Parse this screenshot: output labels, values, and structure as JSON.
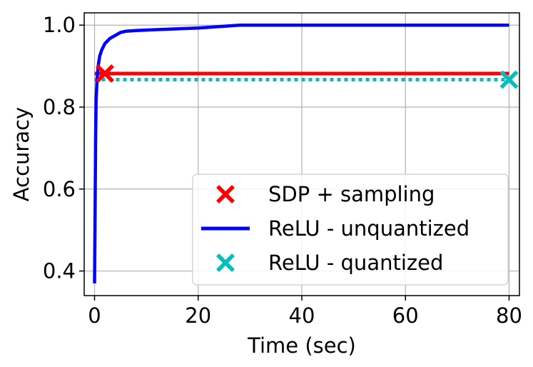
{
  "chart_data": {
    "type": "line",
    "xlabel": "Time (sec)",
    "ylabel": "Accuracy",
    "xlim": [
      -2,
      82
    ],
    "ylim": [
      0.34,
      1.03
    ],
    "x_ticks": [
      0,
      20,
      40,
      60,
      80
    ],
    "y_ticks": [
      0.4,
      0.6,
      0.8,
      1.0
    ],
    "x_tick_labels": [
      "0",
      "20",
      "40",
      "60",
      "80"
    ],
    "y_tick_labels": [
      "0.4",
      "0.6",
      "0.8",
      "1.0"
    ],
    "grid": true,
    "legend_position": "lower-right",
    "series": [
      {
        "name": "SDP + sampling",
        "style": "horizontal-line-with-x-marker",
        "color": "#ff0000",
        "x": [
          0,
          80
        ],
        "y": [
          0.882,
          0.882
        ],
        "marker_x": 2,
        "marker_y": 0.882
      },
      {
        "name": "ReLU - unquantized",
        "style": "solid-line",
        "color": "#0000ff",
        "x": [
          0,
          0.1,
          0.2,
          0.3,
          0.5,
          0.7,
          1.0,
          1.4,
          2.0,
          3.0,
          4.0,
          5.0,
          6.0,
          8.0,
          12.0,
          20.0,
          28.0,
          40.0,
          60.0,
          80.0
        ],
        "y": [
          0.37,
          0.55,
          0.72,
          0.82,
          0.87,
          0.9,
          0.925,
          0.94,
          0.955,
          0.968,
          0.975,
          0.982,
          0.985,
          0.987,
          0.989,
          0.993,
          1.0,
          1.0,
          1.0,
          1.0
        ]
      },
      {
        "name": "ReLU - quantized",
        "style": "dotted-line-with-x-marker",
        "color": "#00bfbf",
        "x": [
          0,
          80
        ],
        "y": [
          0.867,
          0.867
        ],
        "marker_x": 80,
        "marker_y": 0.867
      }
    ]
  }
}
